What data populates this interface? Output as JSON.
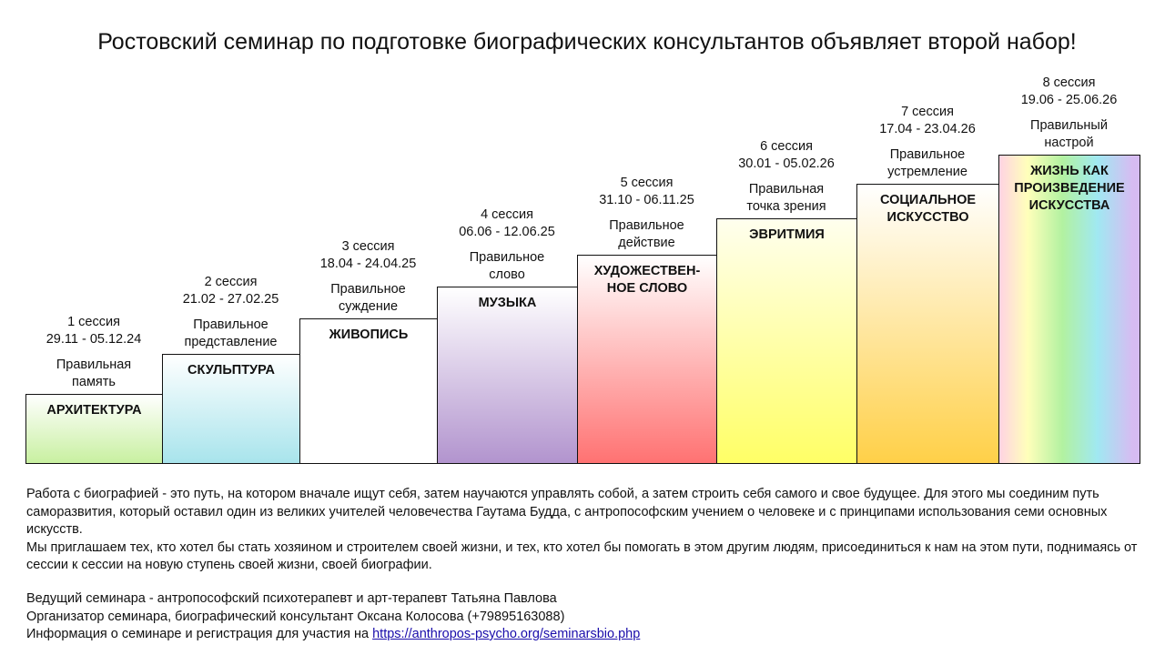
{
  "title": "Ростовский семинар по подготовке биографических консультантов объявляет второй набор!",
  "sessions": [
    {
      "session": "1 сессия",
      "dates": "29.11 - 05.12.24",
      "virtue": "Правильная\nпамять",
      "art": "АРХИТЕКТУРА",
      "color": "#c8f0a0"
    },
    {
      "session": "2 сессия",
      "dates": "21.02 - 27.02.25",
      "virtue": "Правильное\nпредставление",
      "art": "СКУЛЬПТУРА",
      "color": "#a8e4ec"
    },
    {
      "session": "3 сессия",
      "dates": "18.04 - 24.04.25",
      "virtue": "Правильное\nсуждение",
      "art": "ЖИВОПИСЬ",
      "color": "#ffffff"
    },
    {
      "session": "4 сессия",
      "dates": "06.06 - 12.06.25",
      "virtue": "Правильное\nслово",
      "art": "МУЗЫКА",
      "color": "#b294ce"
    },
    {
      "session": "5 сессия",
      "dates": "31.10 - 06.11.25",
      "virtue": "Правильное\nдействие",
      "art": "ХУДОЖЕСТВЕН-\nНОЕ СЛОВО",
      "color": "#ff7272"
    },
    {
      "session": "6 сессия",
      "dates": "30.01 - 05.02.26",
      "virtue": "Правильная\nточка зрения",
      "art": "ЭВРИТМИЯ",
      "color": "#ffff66"
    },
    {
      "session": "7 сессия",
      "dates": "17.04 - 23.04.26",
      "virtue": "Правильное\nустремление",
      "art": "СОЦИАЛЬНОЕ\nИСКУССТВО",
      "color": "#ffd048"
    },
    {
      "session": "8 сессия",
      "dates": "19.06 - 25.06.26",
      "virtue": "Правильный\nнастрой",
      "art": "ЖИЗНЬ КАК\nПРОИЗВЕДЕНИЕ\nИСКУССТВА",
      "color": "rainbow"
    }
  ],
  "description": [
    "Работа с биографией - это путь, на котором вначале ищут себя, затем научаются управлять собой, а затем строить себя самого и свое будущее. Для этого мы соединим путь саморазвития, который оставил один из великих учителей человечества Гаутама Будда, с антропософским учением о человеке и с принципами использования семи основных искусств.",
    "Мы приглашаем тех, кто хотел бы стать хозяином и строителем своей жизни, и тех, кто хотел бы помогать в этом другим людям, присоединиться к нам на этом пути, поднимаясь от сессии к сессии на новую ступень своей жизни, своей биографии."
  ],
  "footer": {
    "leader": "Ведущий семинара - антропософский психотерапевт и арт-терапевт Татьяна Павлова",
    "organizer": "Организатор семинара, биографический консультант Оксана Колосова (+79895163088)",
    "info": "Информация о семинаре и регистрация для участия на ",
    "link": "https://anthropos-psycho.org/seminarsbio.php"
  }
}
